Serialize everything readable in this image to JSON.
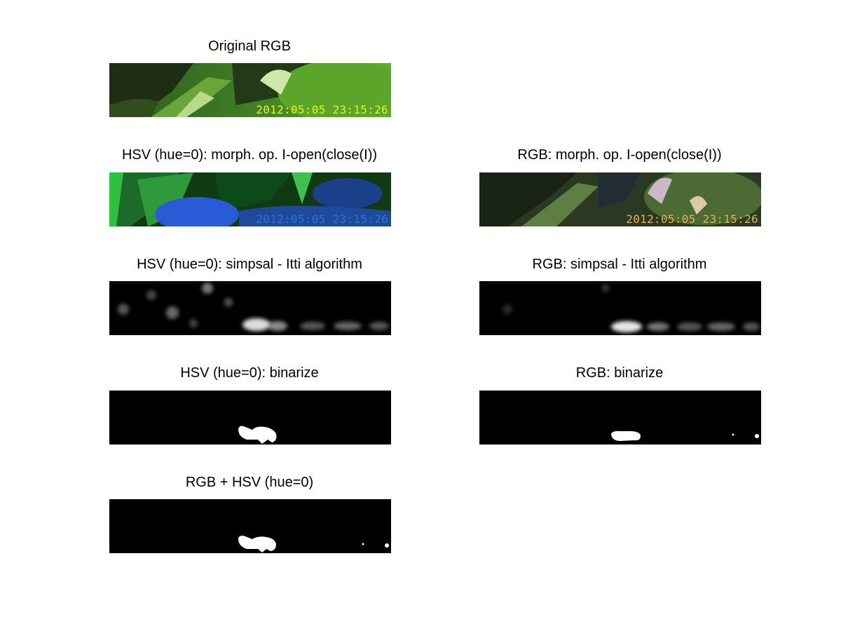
{
  "figure": {
    "panels": {
      "original_rgb": {
        "title": "Original RGB"
      },
      "hsv_morph": {
        "title": "HSV (hue=0): morph. op. I-open(close(I))"
      },
      "rgb_morph": {
        "title": "RGB: morph. op. I-open(close(I))"
      },
      "hsv_simpsal": {
        "title": "HSV (hue=0): simpsal - Itti algorithm"
      },
      "rgb_simpsal": {
        "title": "RGB: simpsal - Itti algorithm"
      },
      "hsv_binarize": {
        "title": "HSV (hue=0): binarize"
      },
      "rgb_binarize": {
        "title": "RGB: binarize"
      },
      "combined": {
        "title": "RGB + HSV (hue=0)"
      }
    },
    "timestamp": "2012:05:05 23:15:26",
    "colors": {
      "background": "#ffffff",
      "title_text": "#000000",
      "stamp_original": "#e6f21a",
      "stamp_hsv": "#2f6fd6",
      "stamp_rgb_morph": "#e9b04a",
      "binary_foreground": "#ffffff",
      "binary_background": "#000000"
    }
  }
}
